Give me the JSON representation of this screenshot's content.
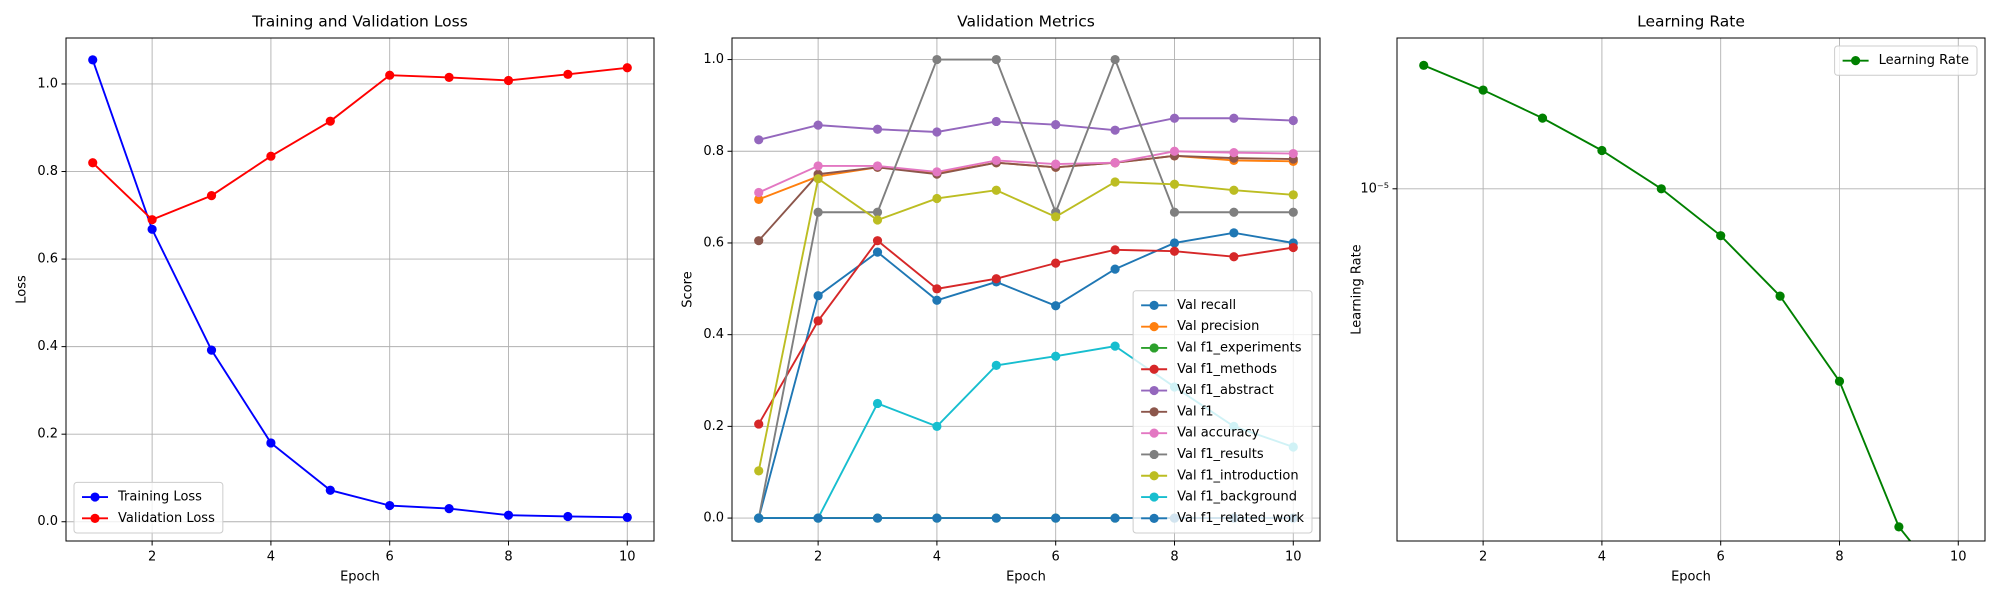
{
  "chart_data": [
    {
      "type": "line",
      "title": "Training and Validation Loss",
      "xlabel": "Epoch",
      "ylabel": "Loss",
      "x": [
        1,
        2,
        3,
        4,
        5,
        6,
        7,
        8,
        9,
        10
      ],
      "xlim": [
        0.55,
        10.45
      ],
      "xticks": [
        2,
        4,
        6,
        8,
        10
      ],
      "ylim": [
        -0.044,
        1.105
      ],
      "yticks": [
        {
          "value": 0,
          "label": "0.0"
        },
        0.2,
        0.4,
        0.6,
        0.8,
        {
          "value": 1,
          "label": "1.0"
        }
      ],
      "grid": true,
      "legend_loc": "lower left",
      "series": [
        {
          "name": "Training Loss",
          "color": "#0000ff",
          "values": [
            1.055,
            0.668,
            0.392,
            0.18,
            0.072,
            0.037,
            0.03,
            0.015,
            0.012,
            0.01
          ]
        },
        {
          "name": "Validation Loss",
          "color": "#ff0000",
          "values": [
            0.82,
            0.69,
            0.745,
            0.835,
            0.915,
            1.02,
            1.015,
            1.008,
            1.022,
            1.037
          ]
        }
      ]
    },
    {
      "type": "line",
      "title": "Validation Metrics",
      "xlabel": "Epoch",
      "ylabel": "Score",
      "x": [
        1,
        2,
        3,
        4,
        5,
        6,
        7,
        8,
        9,
        10
      ],
      "xlim": [
        0.55,
        10.45
      ],
      "xticks": [
        2,
        4,
        6,
        8,
        10
      ],
      "ylim": [
        -0.05,
        1.047
      ],
      "yticks": [
        {
          "value": 0,
          "label": "0.0"
        },
        0.2,
        0.4,
        0.6,
        0.8,
        {
          "value": 1,
          "label": "1.0"
        }
      ],
      "grid": true,
      "legend_loc": "lower right",
      "series": [
        {
          "name": "Val recall",
          "color": "#1f77b4",
          "values": [
            0,
            0.485,
            0.58,
            0.475,
            0.515,
            0.463,
            0.543,
            0.6,
            0.622,
            0.6
          ]
        },
        {
          "name": "Val precision",
          "color": "#ff7f0e",
          "values": [
            0.695,
            0.745,
            0.765,
            0.752,
            0.775,
            0.765,
            0.775,
            0.79,
            0.78,
            0.778
          ]
        },
        {
          "name": "Val f1_experiments",
          "color": "#2ca02c",
          "values": [
            0,
            0,
            0,
            0,
            0,
            0,
            0,
            0,
            0,
            0
          ]
        },
        {
          "name": "Val f1_methods",
          "color": "#d62728",
          "values": [
            0.205,
            0.43,
            0.605,
            0.5,
            0.522,
            0.556,
            0.585,
            0.582,
            0.57,
            0.59
          ]
        },
        {
          "name": "Val f1_abstract",
          "color": "#9467bd",
          "values": [
            0.825,
            0.857,
            0.848,
            0.842,
            0.865,
            0.858,
            0.846,
            0.872,
            0.872,
            0.867
          ]
        },
        {
          "name": "Val f1",
          "color": "#8c564b",
          "values": [
            0.605,
            0.75,
            0.765,
            0.75,
            0.775,
            0.765,
            0.775,
            0.79,
            0.785,
            0.783
          ]
        },
        {
          "name": "Val accuracy",
          "color": "#e377c2",
          "values": [
            0.71,
            0.768,
            0.768,
            0.755,
            0.78,
            0.772,
            0.775,
            0.8,
            0.797,
            0.795
          ]
        },
        {
          "name": "Val f1_results",
          "color": "#7f7f7f",
          "values": [
            0,
            0.667,
            0.667,
            1,
            1,
            0.667,
            1,
            0.667,
            0.667,
            0.667
          ]
        },
        {
          "name": "Val f1_introduction",
          "color": "#bcbd22",
          "values": [
            0.103,
            0.74,
            0.65,
            0.697,
            0.715,
            0.657,
            0.733,
            0.728,
            0.715,
            0.705
          ]
        },
        {
          "name": "Val f1_background",
          "color": "#17becf",
          "values": [
            0,
            0,
            0.25,
            0.2,
            0.333,
            0.353,
            0.375,
            0.286,
            0.2,
            0.155
          ]
        },
        {
          "name": "Val f1_related_work",
          "color": "#1f77b4",
          "values": [
            0,
            0,
            0,
            0,
            0,
            0,
            0,
            0,
            0,
            0
          ]
        }
      ]
    },
    {
      "type": "line",
      "title": "Learning Rate",
      "xlabel": "Epoch",
      "ylabel": "Learning Rate",
      "x": [
        1,
        2,
        3,
        4,
        5,
        6,
        7,
        8,
        9,
        10
      ],
      "xlim": [
        0.55,
        10.45
      ],
      "xticks": [
        2,
        4,
        6,
        8,
        10
      ],
      "ylim": [
        1.87e-06,
        2.05e-05
      ],
      "yticks": [
        {
          "value": 1e-05,
          "label": "10⁻⁵"
        }
      ],
      "log_y": true,
      "grid": true,
      "legend_loc": "upper right",
      "series": [
        {
          "name": "Learning Rate",
          "color": "#008000",
          "values": [
            1.8e-05,
            1.6e-05,
            1.4e-05,
            1.2e-05,
            1e-05,
            8e-06,
            6e-06,
            4e-06,
            2e-06,
            0
          ]
        }
      ]
    }
  ]
}
